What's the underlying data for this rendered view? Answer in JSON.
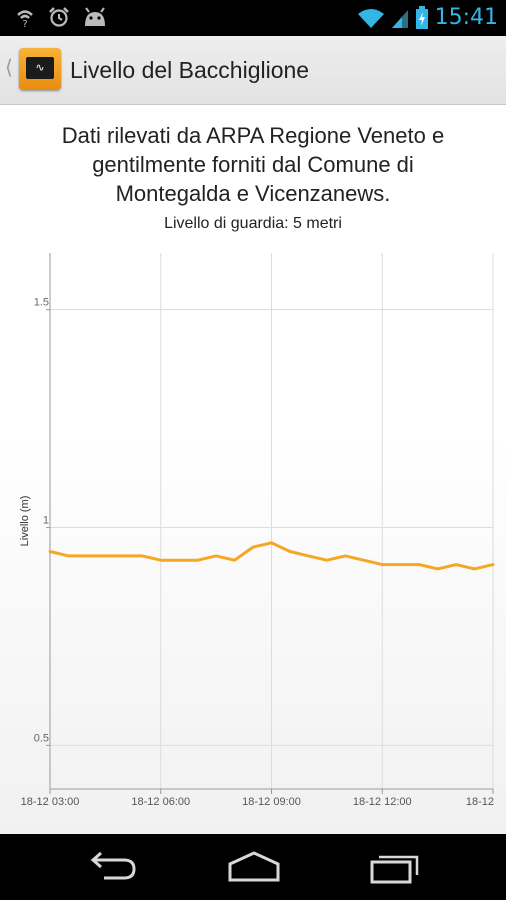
{
  "status_bar": {
    "time": "15:41",
    "left_icons": [
      "usb-debug-icon",
      "alarm-icon",
      "android-icon"
    ],
    "right_icons": [
      "wifi-icon",
      "signal-icon",
      "battery-charging-icon"
    ]
  },
  "action_bar": {
    "title": "Livello del Bacchiglione",
    "app_icon": "app-logo-icon",
    "up_icon": "up-caret-icon"
  },
  "header": {
    "description_lines": [
      "Dati rilevati da ARPA Regione Veneto e",
      "gentilmente forniti dal Comune di",
      "Montegalda e Vicenzanews."
    ],
    "guard_level": "Livello di guardia: 5 metri"
  },
  "chart_data": {
    "type": "line",
    "ylabel": "Livello (m)",
    "xlabel": "",
    "ylim": [
      0.4,
      1.63
    ],
    "yticks": [
      "0.5",
      "1",
      "1.5"
    ],
    "ytick_values": [
      0.5,
      1.0,
      1.5
    ],
    "xlim_hours": [
      3.0,
      15.0
    ],
    "xtick_labels": [
      "18-12 03:00",
      "18-12 06:00",
      "18-12 09:00",
      "18-12 12:00",
      "18-12"
    ],
    "xtick_hours": [
      3.0,
      6.0,
      9.0,
      12.0,
      15.0
    ],
    "grid": true,
    "color": "#f5a623",
    "series": [
      {
        "x_hours": [
          3.0,
          3.5,
          4.0,
          4.5,
          5.0,
          5.5,
          6.0,
          6.5,
          7.0,
          7.5,
          8.0,
          8.5,
          9.0,
          9.5,
          10.0,
          10.5,
          11.0,
          11.5,
          12.0,
          12.5,
          13.0,
          13.5,
          14.0,
          14.5,
          15.0
        ],
        "values": [
          0.945,
          0.935,
          0.935,
          0.935,
          0.935,
          0.935,
          0.925,
          0.925,
          0.925,
          0.935,
          0.925,
          0.955,
          0.965,
          0.945,
          0.935,
          0.925,
          0.935,
          0.925,
          0.915,
          0.915,
          0.915,
          0.905,
          0.915,
          0.905,
          0.915
        ]
      }
    ]
  },
  "nav_bar": {
    "buttons": [
      "back-icon",
      "home-icon",
      "recent-apps-icon"
    ]
  }
}
